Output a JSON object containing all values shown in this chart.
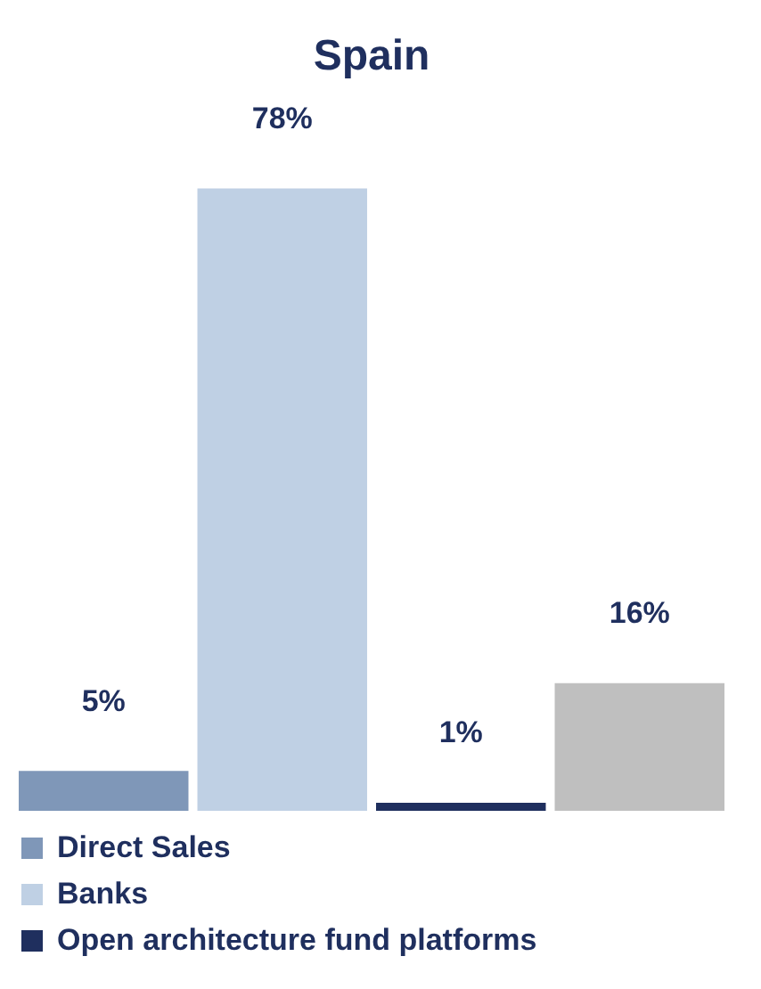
{
  "chart_data": {
    "type": "bar",
    "title": "Spain",
    "categories": [
      null
    ],
    "legend": "bottom",
    "series": [
      {
        "name": "Direct Sales",
        "color": "#7f97b8",
        "values": [
          5
        ],
        "value_labels": [
          "5%"
        ]
      },
      {
        "name": "Banks",
        "color": "#bfd0e4",
        "values": [
          78
        ],
        "value_labels": [
          "78%"
        ]
      },
      {
        "name": "Open architecture fund platforms",
        "color": "#1f2f5e",
        "values": [
          1
        ],
        "value_labels": [
          "1%"
        ]
      },
      {
        "color": "#bfbfbf",
        "values": [
          16
        ],
        "value_labels": [
          "16%"
        ]
      }
    ]
  }
}
